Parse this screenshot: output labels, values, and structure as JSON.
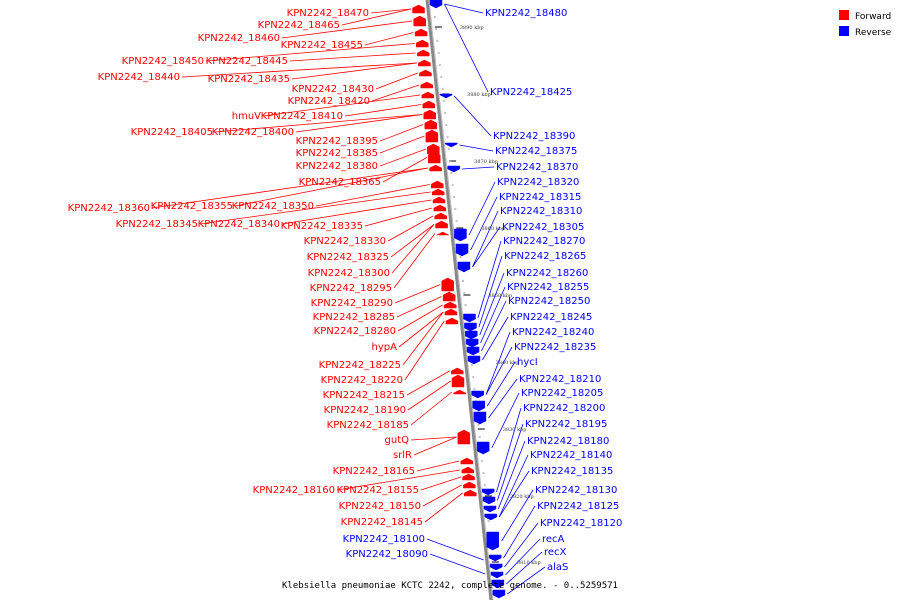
{
  "caption": "Klebsiella pneumoniae KCTC 2242, complete genome. - 0..5259571",
  "legend": [
    {
      "label": "Forward",
      "color": "#ff0000"
    },
    {
      "label": "Reverse",
      "color": "#0000ff"
    }
  ],
  "colors": {
    "forward": "#ff0000",
    "reverse": "#0000ff",
    "backbone": "#888888"
  },
  "ruler": [
    "3890 kbp",
    "3880 kbp",
    "3870 kbp",
    "3860 kbp",
    "3850 kbp",
    "3840 kbp",
    "3830 kbp",
    "3820 kbp",
    "3810 kbp"
  ],
  "forward_labels": [
    "KPN2242_18470",
    "KPN2242_18465",
    "KPN2242_18460",
    "KPN2242_18455",
    "KPN2242_18450",
    "KPN2242_18445",
    "KPN2242_18440",
    "KPN2242_18435",
    "KPN2242_18430",
    "KPN2242_18420",
    "hmuV",
    "KPN2242_18410",
    "KPN2242_18405",
    "KPN2242_18400",
    "KPN2242_18395",
    "KPN2242_18385",
    "KPN2242_18380",
    "KPN2242_18365",
    "KPN2242_18360",
    "KPN2242_18355",
    "KPN2242_18350",
    "KPN2242_18345",
    "KPN2242_18340",
    "KPN2242_18335",
    "KPN2242_18330",
    "KPN2242_18325",
    "KPN2242_18300",
    "KPN2242_18295",
    "KPN2242_18290",
    "KPN2242_18285",
    "KPN2242_18280",
    "hypA",
    "KPN2242_18225",
    "KPN2242_18220",
    "KPN2242_18215",
    "KPN2242_18190",
    "KPN2242_18185",
    "gutQ",
    "srlR",
    "KPN2242_18165",
    "KPN2242_18160",
    "KPN2242_18155",
    "KPN2242_18150",
    "KPN2242_18145"
  ],
  "reverse_labels": [
    "KPN2242_18480",
    "KPN2242_18425",
    "KPN2242_18390",
    "KPN2242_18375",
    "KPN2242_18370",
    "KPN2242_18320",
    "KPN2242_18315",
    "KPN2242_18310",
    "KPN2242_18305",
    "KPN2242_18270",
    "KPN2242_18265",
    "KPN2242_18260",
    "KPN2242_18255",
    "KPN2242_18250",
    "KPN2242_18245",
    "KPN2242_18240",
    "KPN2242_18235",
    "hycI",
    "KPN2242_18210",
    "KPN2242_18205",
    "KPN2242_18200",
    "KPN2242_18195",
    "KPN2242_18180",
    "KPN2242_18140",
    "KPN2242_18135",
    "KPN2242_18130",
    "KPN2242_18125",
    "KPN2242_18120",
    "recA",
    "recX",
    "alaS"
  ],
  "left_reverse_labels": [
    "KPN2242_18100",
    "KPN2242_18090"
  ]
}
